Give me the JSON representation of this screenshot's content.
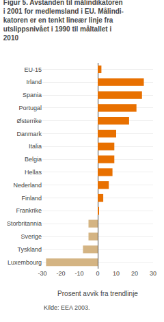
{
  "chart_data": {
    "type": "bar",
    "orientation": "horizontal",
    "title": "Figur 5. Avstanden til målindikatoren\ni 2001 for medlemsland i EU. Målindi-\nkatoren er en tenkt lineær linje fra\nutslippsnivået i 1990 til måltallet i\n2010",
    "xlabel": "Prosent avvik fra trendlinje",
    "source": "Kilde: EEA 2003.",
    "categories": [
      "EU-15",
      "Irland",
      "Spania",
      "Portugal",
      "Østerrike",
      "Danmark",
      "Italia",
      "Belgia",
      "Hellas",
      "Nederland",
      "Finland",
      "Frankrike",
      "Storbritannia",
      "Sverige",
      "Tyskland",
      "Luxembourg"
    ],
    "values": [
      2,
      25,
      24,
      21,
      17,
      10,
      9,
      9,
      8,
      6,
      3,
      0.5,
      -5,
      -5,
      -8,
      -28
    ],
    "colors": [
      "#e87000",
      "#e87000",
      "#e87000",
      "#e87000",
      "#e87000",
      "#e87000",
      "#e87000",
      "#e87000",
      "#e87000",
      "#e87000",
      "#e87000",
      "#e87000",
      "#d4b483",
      "#d4b483",
      "#d4b483",
      "#d4b483"
    ],
    "xlim": [
      -30,
      30
    ],
    "xticks": [
      -30,
      -20,
      -10,
      0,
      10,
      20,
      30
    ],
    "grid": true
  }
}
